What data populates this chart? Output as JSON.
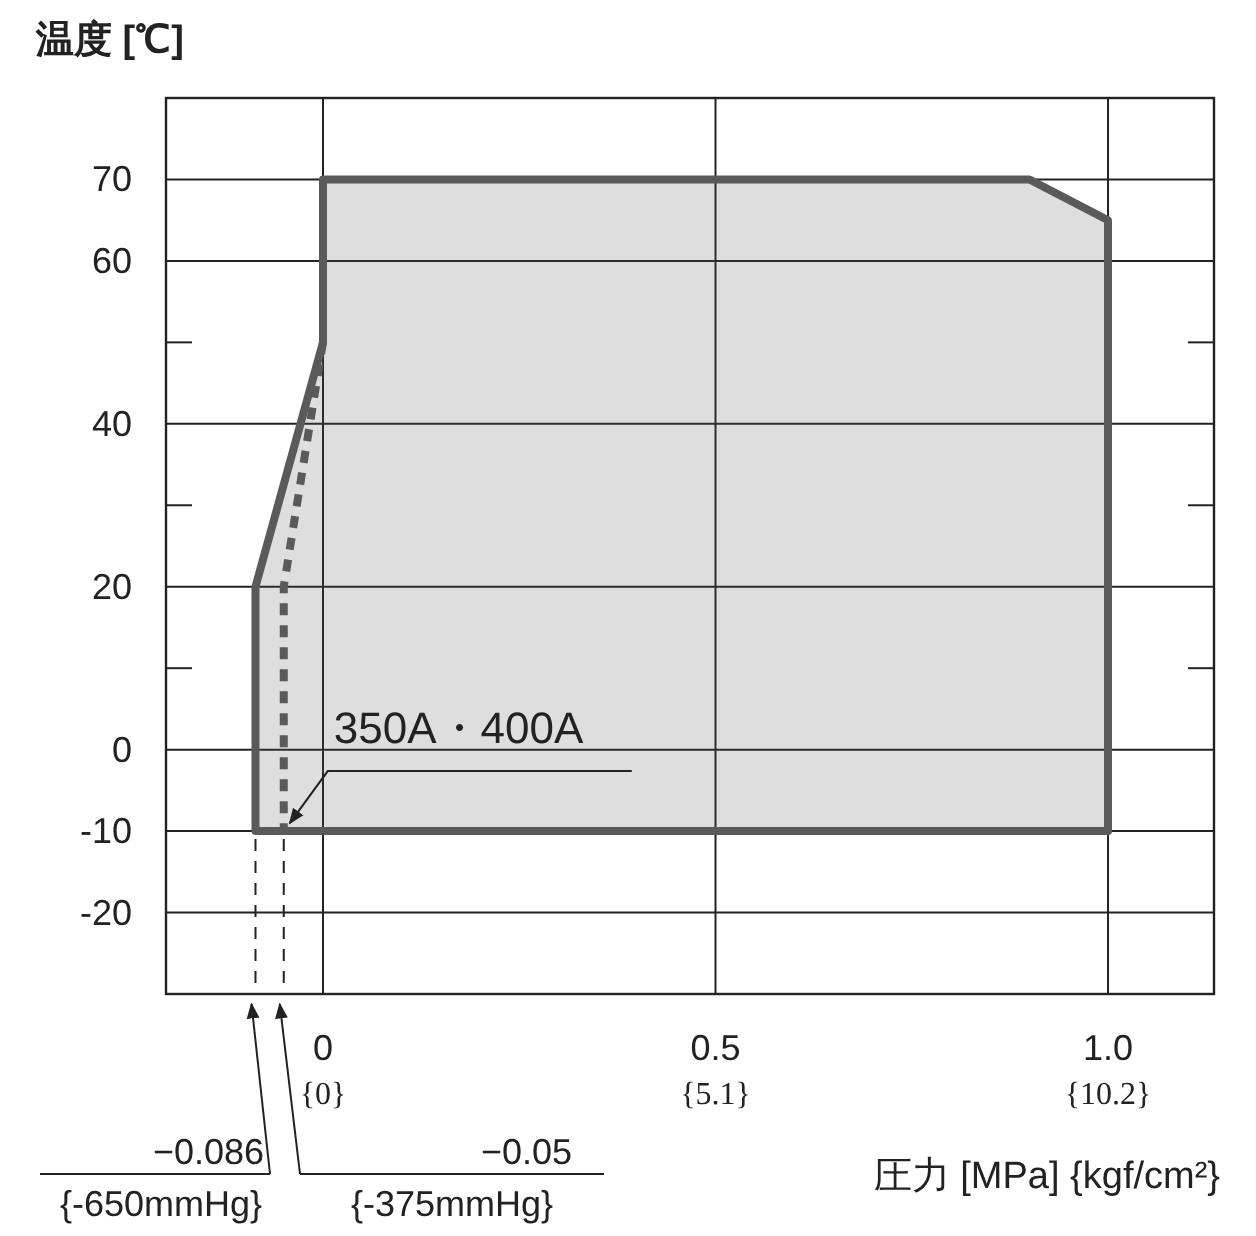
{
  "chart_data": {
    "type": "area",
    "ylabel": "温度 [℃]",
    "xlabel": "圧力 [MPa] {kgf/cm²}",
    "xlim": [
      -0.2,
      1.135
    ],
    "ylim": [
      -30,
      80
    ],
    "xticks": [
      0,
      0.5,
      {
        "value": 1,
        "label": "1.0"
      }
    ],
    "x2lim": [
      -2.04,
      11.577
    ],
    "x2ticks": [
      {
        "value": 0,
        "label": "{0}"
      },
      {
        "value": 5.1,
        "label": "{5.1}"
      },
      {
        "value": 10.2,
        "label": "{10.2}"
      }
    ],
    "yticks": [
      70,
      60,
      {
        "value": 50,
        "label": null
      },
      40,
      {
        "value": 30,
        "label": null
      },
      20,
      {
        "value": 10,
        "label": null
      },
      0,
      -10,
      -20
    ],
    "grid": true,
    "series": [
      {
        "type": "area",
        "color": "#5a5a5a",
        "x": [
          -0.086,
          -0.086,
          0,
          0,
          0.9,
          1.0,
          1.0,
          -0.086
        ],
        "values": [
          -10,
          20,
          50,
          70,
          70,
          65,
          -10,
          -10
        ]
      },
      {
        "type": "line",
        "line_style": "dashed",
        "color": "#5a5a5a",
        "x": [
          0,
          -0.05,
          -0.05
        ],
        "values": [
          50,
          20,
          -10
        ]
      }
    ],
    "annotations": [
      {
        "text": "350A・400A",
        "x": -0.05,
        "y": -10
      },
      "−0.086 {-650mmHg}",
      "−0.05 {-375mmHg}"
    ],
    "ref_lines": [
      {
        "axis": "x",
        "value": -0.086,
        "line_style": "dashed",
        "color": "#222222"
      },
      {
        "axis": "x",
        "value": -0.05,
        "line_style": "dashed",
        "color": "#222222"
      }
    ]
  }
}
